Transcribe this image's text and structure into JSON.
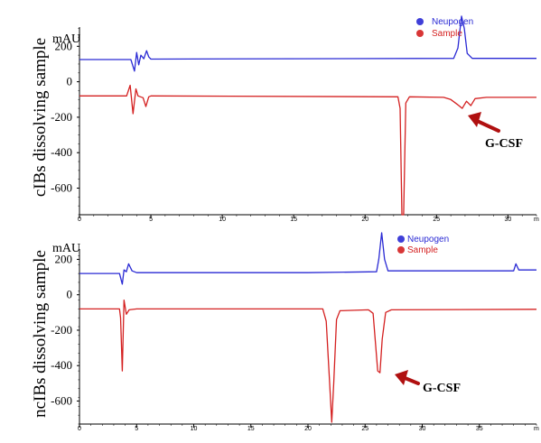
{
  "chart_data": [
    {
      "type": "line",
      "panel_label": "cIBs dissolving sample",
      "yunit": "mAU",
      "xlim": [
        0,
        32
      ],
      "ylim": [
        -750,
        400
      ],
      "xticks": [
        0,
        5,
        10,
        15,
        20,
        25,
        30
      ],
      "xtick_labels": [
        "0",
        "5",
        "10",
        "15",
        "20",
        "25",
        "30"
      ],
      "x_unit_fragment": "m",
      "yticks": [
        200,
        0,
        -200,
        -400,
        -600
      ],
      "ytick_labels": [
        "200",
        "0",
        "-200",
        "-400",
        "-600"
      ],
      "legend": [
        "Neupogen",
        "Sample"
      ],
      "annotation": "G-CSF",
      "annotation_point": [
        26.9,
        -140
      ],
      "series": [
        {
          "name": "Neupogen",
          "color": "#2a2ad4",
          "points": [
            [
              0,
              125
            ],
            [
              3.6,
              125
            ],
            [
              3.85,
              60
            ],
            [
              4.0,
              165
            ],
            [
              4.15,
              95
            ],
            [
              4.3,
              150
            ],
            [
              4.5,
              130
            ],
            [
              4.7,
              175
            ],
            [
              4.85,
              140
            ],
            [
              5.0,
              128
            ],
            [
              15,
              130
            ],
            [
              26.2,
              132
            ],
            [
              26.5,
              190
            ],
            [
              26.75,
              370
            ],
            [
              26.95,
              300
            ],
            [
              27.15,
              160
            ],
            [
              27.5,
              132
            ],
            [
              32,
              132
            ]
          ]
        },
        {
          "name": "Sample",
          "color": "#d42020",
          "points": [
            [
              0,
              -80
            ],
            [
              3.3,
              -80
            ],
            [
              3.55,
              -20
            ],
            [
              3.75,
              -180
            ],
            [
              3.95,
              -40
            ],
            [
              4.1,
              -80
            ],
            [
              4.45,
              -90
            ],
            [
              4.65,
              -140
            ],
            [
              4.85,
              -85
            ],
            [
              5.0,
              -80
            ],
            [
              22.3,
              -85
            ],
            [
              22.45,
              -150
            ],
            [
              22.58,
              -760
            ],
            [
              22.7,
              -760
            ],
            [
              22.85,
              -120
            ],
            [
              23.1,
              -85
            ],
            [
              25.5,
              -88
            ],
            [
              26.0,
              -100
            ],
            [
              26.5,
              -130
            ],
            [
              26.8,
              -150
            ],
            [
              27.1,
              -110
            ],
            [
              27.4,
              -135
            ],
            [
              27.7,
              -95
            ],
            [
              28.5,
              -88
            ],
            [
              32,
              -88
            ]
          ]
        }
      ]
    },
    {
      "type": "line",
      "panel_label": "ncIBs dissolving sample",
      "yunit": "mAU",
      "xlim": [
        0,
        40
      ],
      "ylim": [
        -730,
        350
      ],
      "xticks": [
        0,
        5,
        10,
        15,
        20,
        25,
        30,
        35
      ],
      "xtick_labels": [
        "0",
        "5",
        "10",
        "15",
        "20",
        "25",
        "30",
        "35"
      ],
      "x_unit_fragment": "m",
      "yticks": [
        200,
        0,
        -200,
        -400,
        -600
      ],
      "ytick_labels": [
        "200",
        "0",
        "-200",
        "-400",
        "-600"
      ],
      "legend": [
        "Neupogen",
        "Sample"
      ],
      "annotation": "G-CSF",
      "annotation_point": [
        27.3,
        -430
      ],
      "series": [
        {
          "name": "Neupogen",
          "color": "#2a2ad4",
          "points": [
            [
              0,
              120
            ],
            [
              3.5,
              120
            ],
            [
              3.75,
              60
            ],
            [
              3.9,
              140
            ],
            [
              4.1,
              130
            ],
            [
              4.3,
              175
            ],
            [
              4.6,
              135
            ],
            [
              5.0,
              125
            ],
            [
              20,
              125
            ],
            [
              26.0,
              130
            ],
            [
              26.2,
              200
            ],
            [
              26.45,
              370
            ],
            [
              26.7,
              200
            ],
            [
              27.0,
              135
            ],
            [
              38.0,
              135
            ],
            [
              38.2,
              175
            ],
            [
              38.45,
              140
            ],
            [
              40,
              140
            ]
          ]
        },
        {
          "name": "Sample",
          "color": "#d42020",
          "points": [
            [
              0,
              -80
            ],
            [
              3.5,
              -80
            ],
            [
              3.6,
              -130
            ],
            [
              3.75,
              -430
            ],
            [
              3.9,
              -30
            ],
            [
              4.1,
              -110
            ],
            [
              4.35,
              -85
            ],
            [
              5.0,
              -80
            ],
            [
              21.3,
              -80
            ],
            [
              21.6,
              -150
            ],
            [
              21.9,
              -500
            ],
            [
              22.08,
              -720
            ],
            [
              22.25,
              -500
            ],
            [
              22.5,
              -140
            ],
            [
              22.8,
              -90
            ],
            [
              25.3,
              -85
            ],
            [
              25.7,
              -105
            ],
            [
              26.1,
              -430
            ],
            [
              26.3,
              -440
            ],
            [
              26.5,
              -250
            ],
            [
              26.8,
              -100
            ],
            [
              27.3,
              -85
            ],
            [
              40,
              -82
            ]
          ]
        }
      ]
    }
  ]
}
